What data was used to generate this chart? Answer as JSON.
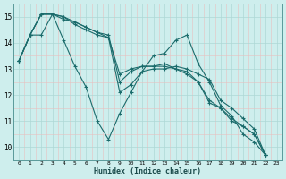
{
  "xlabel": "Humidex (Indice chaleur)",
  "bg_color": "#ceeeed",
  "grid_color": "#aed8d5",
  "line_color": "#1a6b6b",
  "xlim": [
    -0.5,
    23.5
  ],
  "ylim": [
    9.5,
    15.5
  ],
  "yticks": [
    10,
    11,
    12,
    13,
    14,
    15
  ],
  "xticks": [
    0,
    1,
    2,
    3,
    4,
    5,
    6,
    7,
    8,
    9,
    10,
    11,
    12,
    13,
    14,
    15,
    16,
    17,
    18,
    19,
    20,
    21,
    22,
    23
  ],
  "series": [
    [
      13.3,
      14.3,
      15.1,
      15.1,
      15.0,
      14.7,
      14.5,
      14.3,
      14.2,
      12.1,
      12.4,
      12.9,
      13.0,
      13.0,
      13.1,
      13.0,
      12.8,
      12.6,
      11.8,
      11.5,
      11.1,
      10.7,
      9.7
    ],
    [
      13.3,
      14.3,
      15.1,
      15.1,
      15.0,
      14.8,
      14.6,
      14.4,
      14.3,
      12.5,
      12.9,
      13.1,
      13.1,
      13.1,
      13.0,
      12.8,
      12.5,
      11.7,
      11.5,
      11.0,
      10.8,
      10.5,
      9.7
    ],
    [
      13.3,
      14.3,
      15.1,
      15.1,
      14.9,
      14.8,
      14.6,
      14.4,
      14.2,
      12.8,
      13.0,
      13.1,
      13.1,
      13.2,
      13.0,
      12.9,
      12.5,
      11.8,
      11.5,
      11.1,
      10.8,
      10.5,
      9.7
    ],
    [
      13.3,
      14.3,
      14.3,
      15.1,
      14.1,
      13.1,
      12.3,
      11.0,
      10.3,
      11.3,
      12.1,
      12.9,
      13.5,
      13.6,
      14.1,
      14.3,
      13.2,
      12.5,
      11.6,
      11.2,
      10.5,
      10.2,
      9.7
    ]
  ]
}
